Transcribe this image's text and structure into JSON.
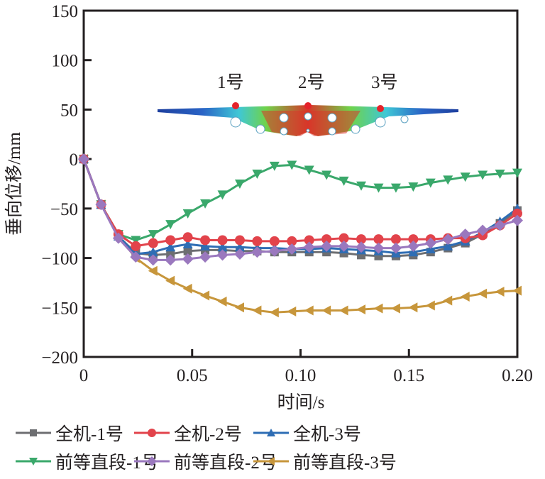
{
  "chart_data": {
    "type": "line",
    "title": "",
    "xlabel": "时间/s",
    "ylabel": "垂向位移/mm",
    "xlim": [
      0,
      0.2
    ],
    "ylim": [
      -200,
      150
    ],
    "xticks": [
      0,
      0.05,
      0.1,
      0.15,
      0.2
    ],
    "xtick_labels": [
      "0",
      "0.05",
      "0.10",
      "0.15",
      "0.20"
    ],
    "yticks": [
      150,
      100,
      50,
      0,
      -50,
      -100,
      -150,
      -200
    ],
    "ytick_labels": [
      "150",
      "100",
      "50",
      "0",
      "−50",
      "−100",
      "−150",
      "−200"
    ],
    "grid": false,
    "legend_position": "bottom",
    "x": [
      0,
      0.008,
      0.016,
      0.024,
      0.032,
      0.04,
      0.048,
      0.056,
      0.064,
      0.072,
      0.08,
      0.088,
      0.096,
      0.104,
      0.112,
      0.12,
      0.128,
      0.136,
      0.144,
      0.152,
      0.16,
      0.168,
      0.176,
      0.184,
      0.192,
      0.2
    ],
    "series": [
      {
        "name": "全机-1号",
        "color": "#6d6e71",
        "marker": "square",
        "values": [
          0,
          -46,
          -78,
          -95,
          -97,
          -96,
          -93,
          -92,
          -92,
          -93,
          -93,
          -94,
          -94,
          -94,
          -94,
          -95,
          -97,
          -98,
          -98,
          -97,
          -94,
          -90,
          -85,
          -76,
          -65,
          -52
        ]
      },
      {
        "name": "全机-2号",
        "color": "#e2434b",
        "marker": "circle",
        "values": [
          0,
          -46,
          -76,
          -88,
          -85,
          -82,
          -79,
          -82,
          -82,
          -82,
          -83,
          -83,
          -83,
          -82,
          -81,
          -80,
          -81,
          -81,
          -81,
          -81,
          -81,
          -80,
          -80,
          -77,
          -67,
          -55
        ]
      },
      {
        "name": "全机-3号",
        "color": "#2e6db4",
        "marker": "triangle-up",
        "values": [
          0,
          -46,
          -78,
          -96,
          -94,
          -89,
          -86,
          -88,
          -89,
          -89,
          -90,
          -90,
          -91,
          -91,
          -90,
          -91,
          -92,
          -93,
          -95,
          -94,
          -91,
          -88,
          -83,
          -74,
          -63,
          -50
        ]
      },
      {
        "name": "前等直段-1号",
        "color": "#3aa86b",
        "marker": "triangle-down",
        "values": [
          0,
          -46,
          -76,
          -82,
          -76,
          -66,
          -55,
          -45,
          -36,
          -25,
          -15,
          -7,
          -6,
          -11,
          -16,
          -22,
          -27,
          -29,
          -29,
          -28,
          -24,
          -21,
          -18,
          -16,
          -15,
          -14
        ]
      },
      {
        "name": "前等直段-2号",
        "color": "#9a78be",
        "marker": "diamond",
        "values": [
          0,
          -46,
          -80,
          -99,
          -102,
          -102,
          -101,
          -99,
          -97,
          -96,
          -94,
          -93,
          -91,
          -89,
          -88,
          -88,
          -89,
          -90,
          -90,
          -88,
          -85,
          -81,
          -76,
          -72,
          -67,
          -62
        ]
      },
      {
        "name": "前等直段-3号",
        "color": "#c7963b",
        "marker": "triangle-left",
        "values": [
          0,
          -46,
          -78,
          -100,
          -113,
          -123,
          -131,
          -138,
          -144,
          -150,
          -153,
          -155,
          -154,
          -153,
          -153,
          -153,
          -152,
          -151,
          -151,
          -150,
          -148,
          -143,
          -139,
          -136,
          -134,
          -133
        ]
      }
    ],
    "inset": {
      "description": "beam deformation contour plot with measurement points",
      "point_labels": [
        "1号",
        "2号",
        "3号"
      ],
      "point_color": "#e5232b"
    }
  }
}
